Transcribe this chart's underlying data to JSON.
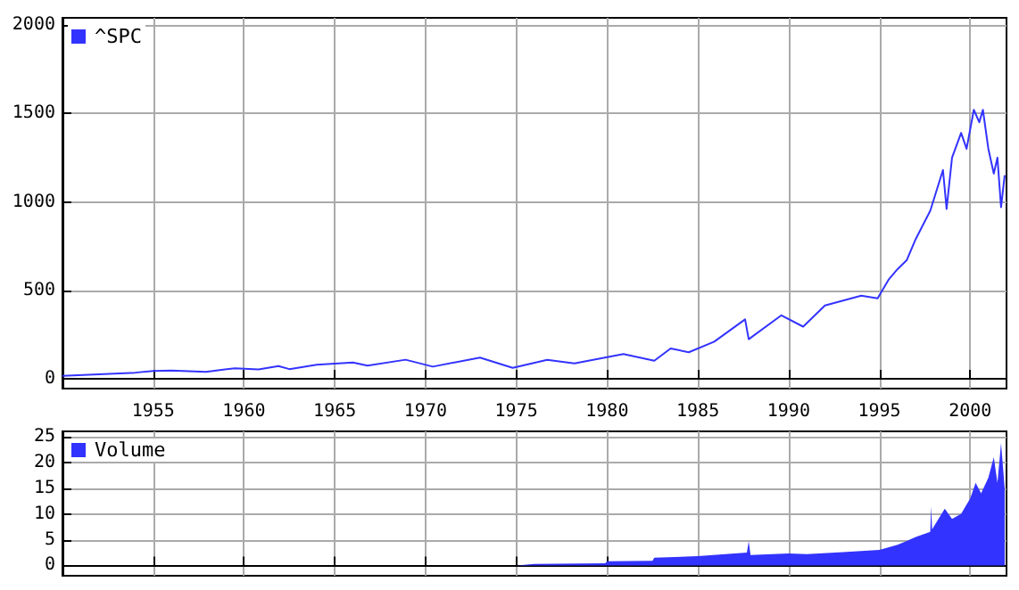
{
  "chart_data": [
    {
      "type": "line",
      "xlim": [
        1950,
        2002
      ],
      "ylim": [
        -55,
        2040
      ],
      "xticks": [
        1955,
        1960,
        1965,
        1970,
        1975,
        1980,
        1985,
        1990,
        1995,
        2000
      ],
      "yticks": [
        0,
        500,
        1000,
        1500,
        2000
      ],
      "grid": true,
      "legend": "top left",
      "marker": "none",
      "series": [
        {
          "name": "^SPC",
          "color": "#3333ff",
          "x": [
            1950,
            1952,
            1954,
            1955,
            1956,
            1957.9,
            1959.5,
            1960.8,
            1961.9,
            1962.5,
            1964,
            1966,
            1966.8,
            1968.9,
            1970.4,
            1973,
            1974.8,
            1976.7,
            1978.2,
            1980.9,
            1982.6,
            1983.5,
            1984.5,
            1985.9,
            1987.6,
            1987.8,
            1989.6,
            1990.8,
            1992,
            1994,
            1994.9,
            1995.5,
            1996,
            1996.5,
            1997,
            1997.8,
            1998.5,
            1998.7,
            1999,
            1999.5,
            1999.8,
            2000.2,
            2000.5,
            2000.7,
            2001,
            2001.3,
            2001.5,
            2001.7,
            2001.9
          ],
          "values": [
            17,
            25,
            35,
            45,
            47,
            40,
            60,
            53,
            72,
            55,
            80,
            92,
            75,
            108,
            69,
            120,
            62,
            107,
            87,
            140,
            102,
            172,
            150,
            210,
            336,
            224,
            359,
            295,
            415,
            470,
            455,
            560,
            620,
            670,
            790,
            950,
            1180,
            960,
            1250,
            1390,
            1300,
            1520,
            1450,
            1520,
            1300,
            1160,
            1250,
            970,
            1150
          ]
        }
      ]
    },
    {
      "type": "area",
      "xlim": [
        1950,
        2002
      ],
      "ylim": [
        -2,
        26
      ],
      "xticks": [
        1955,
        1960,
        1965,
        1970,
        1975,
        1980,
        1985,
        1990,
        1995,
        2000
      ],
      "yticks": [
        0,
        5,
        10,
        15,
        20,
        25
      ],
      "grid": true,
      "legend": "top left",
      "tick_labels": "y",
      "series": [
        {
          "name": "Volume",
          "color": "#3333ff",
          "x": [
            1950,
            1975,
            1976,
            1979.9,
            1980,
            1982.5,
            1982.6,
            1985,
            1987.7,
            1987.8,
            1987.9,
            1990,
            1991,
            1993,
            1995,
            1996,
            1997,
            1997.8,
            1997.85,
            1997.9,
            1998.6,
            1999,
            1999.5,
            2000,
            2000.3,
            2000.6,
            2001,
            2001.3,
            2001.5,
            2001.7,
            2001.9
          ],
          "values": [
            0,
            0,
            0.3,
            0.4,
            0.8,
            0.9,
            1.5,
            1.8,
            2.5,
            4.7,
            2.0,
            2.3,
            2.2,
            2.6,
            3,
            4,
            5.5,
            6.5,
            11.5,
            7,
            11,
            9,
            10,
            13,
            16,
            14,
            17,
            21,
            16,
            23.7,
            15
          ]
        }
      ]
    }
  ]
}
